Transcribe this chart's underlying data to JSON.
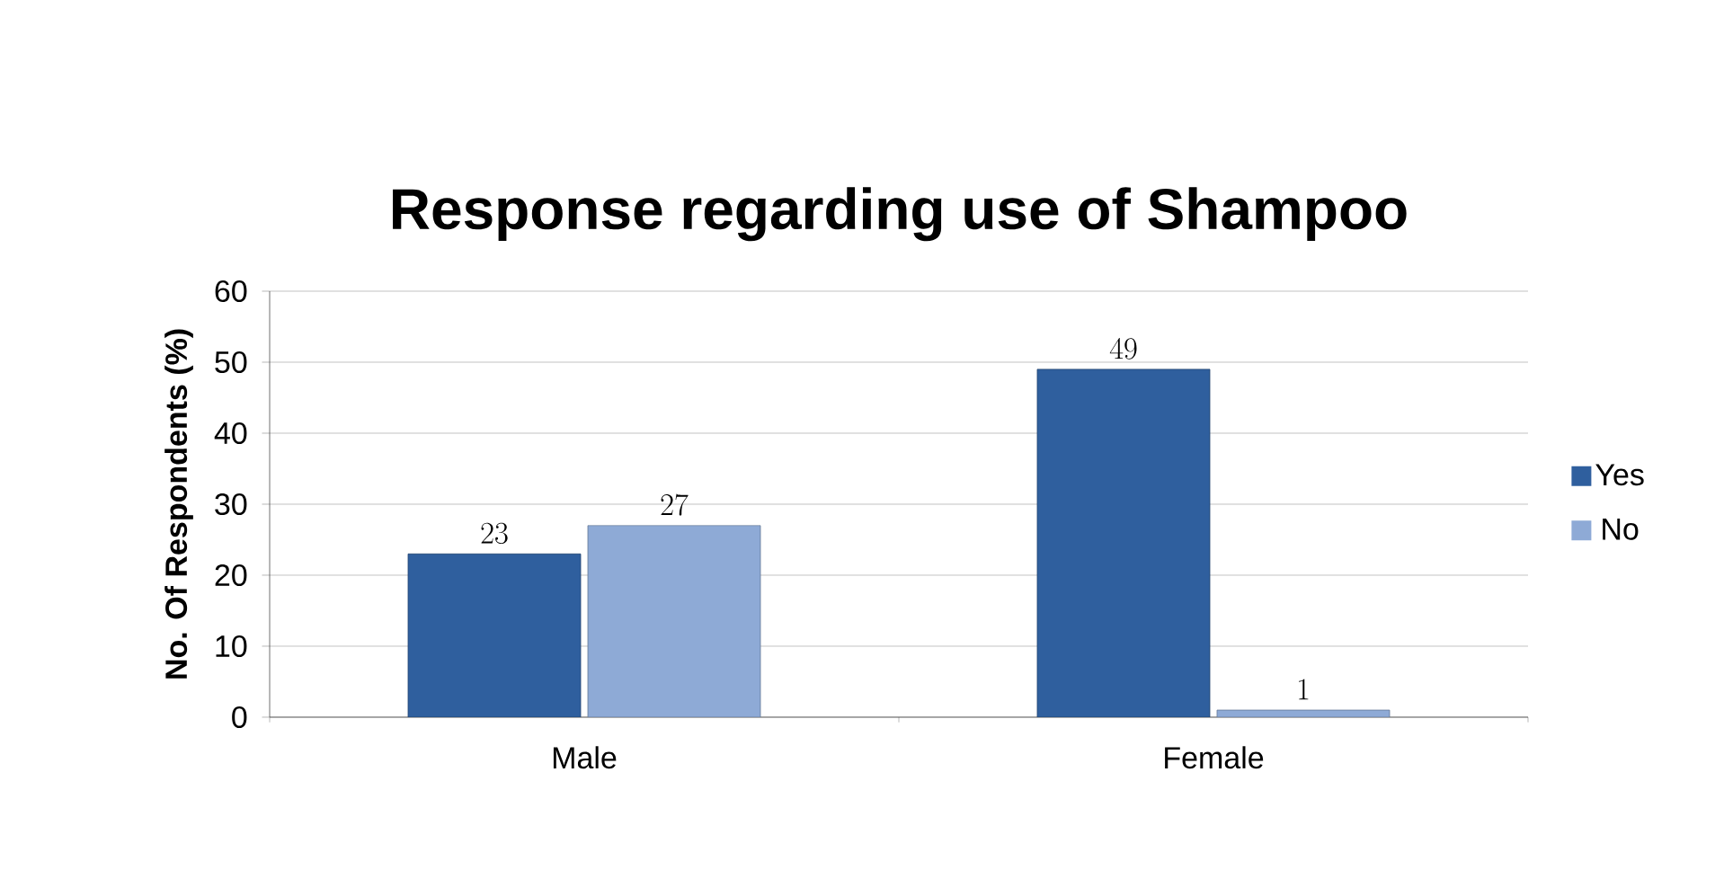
{
  "chart_data": {
    "type": "bar",
    "title": "Response regarding use of Shampoo",
    "ylabel": "No. Of Respondents (%)",
    "categories": [
      "Male",
      "Female"
    ],
    "series": [
      {
        "name": "Yes",
        "color": "#2f5f9e",
        "values": [
          23,
          49
        ]
      },
      {
        "name": "No",
        "color": "#8eaad6",
        "values": [
          27,
          1
        ]
      }
    ],
    "ylim": [
      0,
      60
    ],
    "yticks": [
      0,
      10,
      20,
      30,
      40,
      50,
      60
    ],
    "grid": "y",
    "legend": "right",
    "data_labels": true
  }
}
